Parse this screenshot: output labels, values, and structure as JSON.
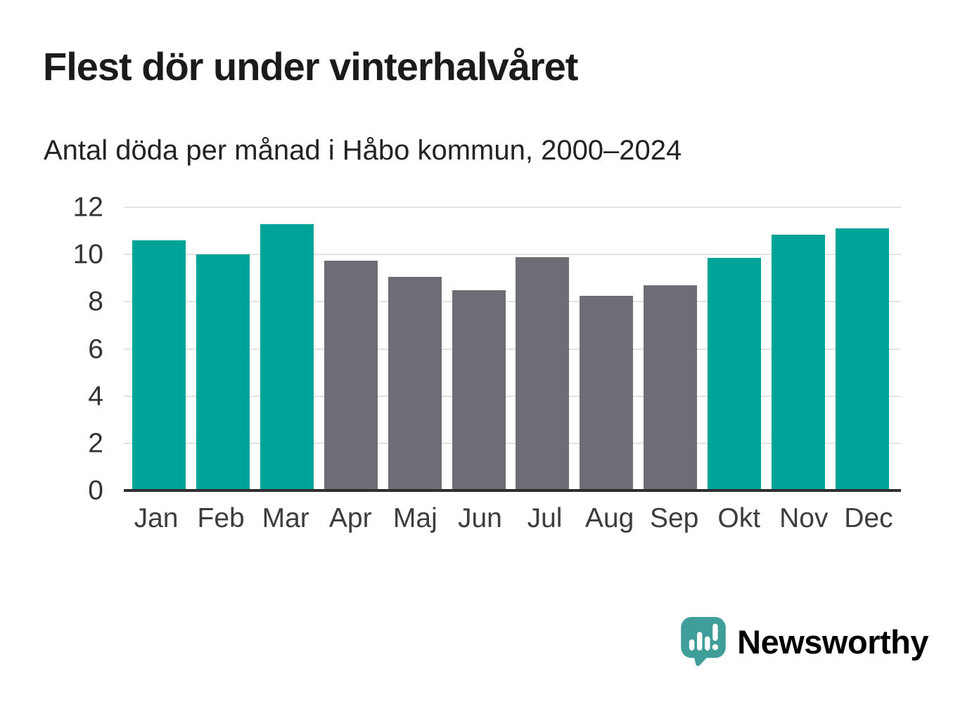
{
  "chart_data": {
    "type": "bar",
    "title": "Flest dör under vinterhalvåret",
    "subtitle": "Antal döda per månad i Håbo kommun, 2000–2024",
    "categories": [
      "Jan",
      "Feb",
      "Mar",
      "Apr",
      "Maj",
      "Jun",
      "Jul",
      "Aug",
      "Sep",
      "Okt",
      "Nov",
      "Dec"
    ],
    "values": [
      10.6,
      10.0,
      11.3,
      9.75,
      9.05,
      8.5,
      9.9,
      8.25,
      8.7,
      9.85,
      10.85,
      11.1
    ],
    "bar_colors": [
      "#00a398",
      "#00a398",
      "#00a398",
      "#6e6d75",
      "#6e6d75",
      "#6e6d75",
      "#6e6d75",
      "#6e6d75",
      "#6e6d75",
      "#00a398",
      "#00a398",
      "#00a398"
    ],
    "xlabel": "",
    "ylabel": "",
    "ylim": [
      0,
      12
    ],
    "yticks": [
      0,
      2,
      4,
      6,
      8,
      10,
      12
    ],
    "grid": "horizontal",
    "legend": "none"
  },
  "colors": {
    "winter_bar_teal": "#00a398",
    "summer_bar_gray": "#6e6d75",
    "title_text": "#1b1b1b",
    "axis_text": "#333333",
    "gridline": "#e3e3e3",
    "axis_line": "#2e2e2e",
    "logo_teal": "#3f9e9a",
    "background": "#ffffff"
  },
  "footer": {
    "brand": "Newsworthy",
    "logo_icon": "speech-bubble-bar-chart-icon"
  }
}
